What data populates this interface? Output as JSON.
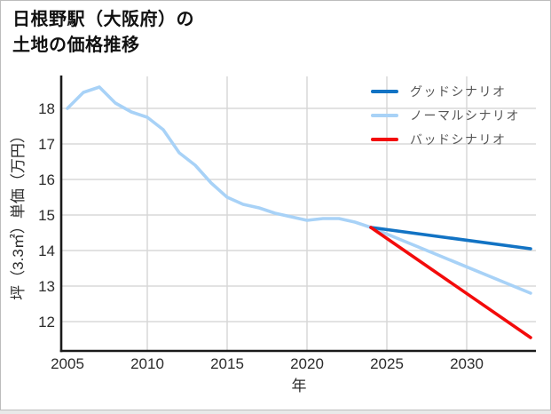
{
  "header": {
    "title_lines": [
      "日根野駅（大阪府）の",
      "土地の価格推移"
    ]
  },
  "chart_data": {
    "type": "line",
    "title": "日根野駅（大阪府）の土地の価格推移",
    "xlabel": "年",
    "ylabel": "坪（3.3㎡）単価（万円）",
    "x_ticks": [
      2005,
      2010,
      2015,
      2020,
      2025,
      2030
    ],
    "y_ticks": [
      12,
      13,
      14,
      15,
      16,
      17,
      18
    ],
    "xlim": [
      2004.6,
      2034.4
    ],
    "ylim": [
      11.3,
      18.9
    ],
    "grid": true,
    "legend_position": "top-right",
    "grid_color": "#d8d8d8",
    "axis_color": "#1a1a1a",
    "history": {
      "color": "#a8d2f7",
      "years": [
        2005,
        2006,
        2007,
        2008,
        2009,
        2010,
        2011,
        2012,
        2013,
        2014,
        2015,
        2016,
        2017,
        2018,
        2019,
        2020,
        2021,
        2022,
        2023,
        2024
      ],
      "values": [
        18.0,
        18.45,
        18.6,
        18.15,
        17.9,
        17.75,
        17.4,
        16.75,
        16.4,
        15.9,
        15.5,
        15.3,
        15.2,
        15.05,
        14.95,
        14.85,
        14.9,
        14.9,
        14.8,
        14.65
      ]
    },
    "scenarios": [
      {
        "name": "グッドシナリオ",
        "color": "#1273c4",
        "years": [
          2024,
          2034
        ],
        "values": [
          14.65,
          14.05
        ]
      },
      {
        "name": "ノーマルシナリオ",
        "color": "#a8d2f7",
        "years": [
          2024,
          2034
        ],
        "values": [
          14.65,
          12.8
        ]
      },
      {
        "name": "バッドシナリオ",
        "color": "#f30b0b",
        "years": [
          2024,
          2034
        ],
        "values": [
          14.65,
          11.55
        ]
      }
    ]
  }
}
